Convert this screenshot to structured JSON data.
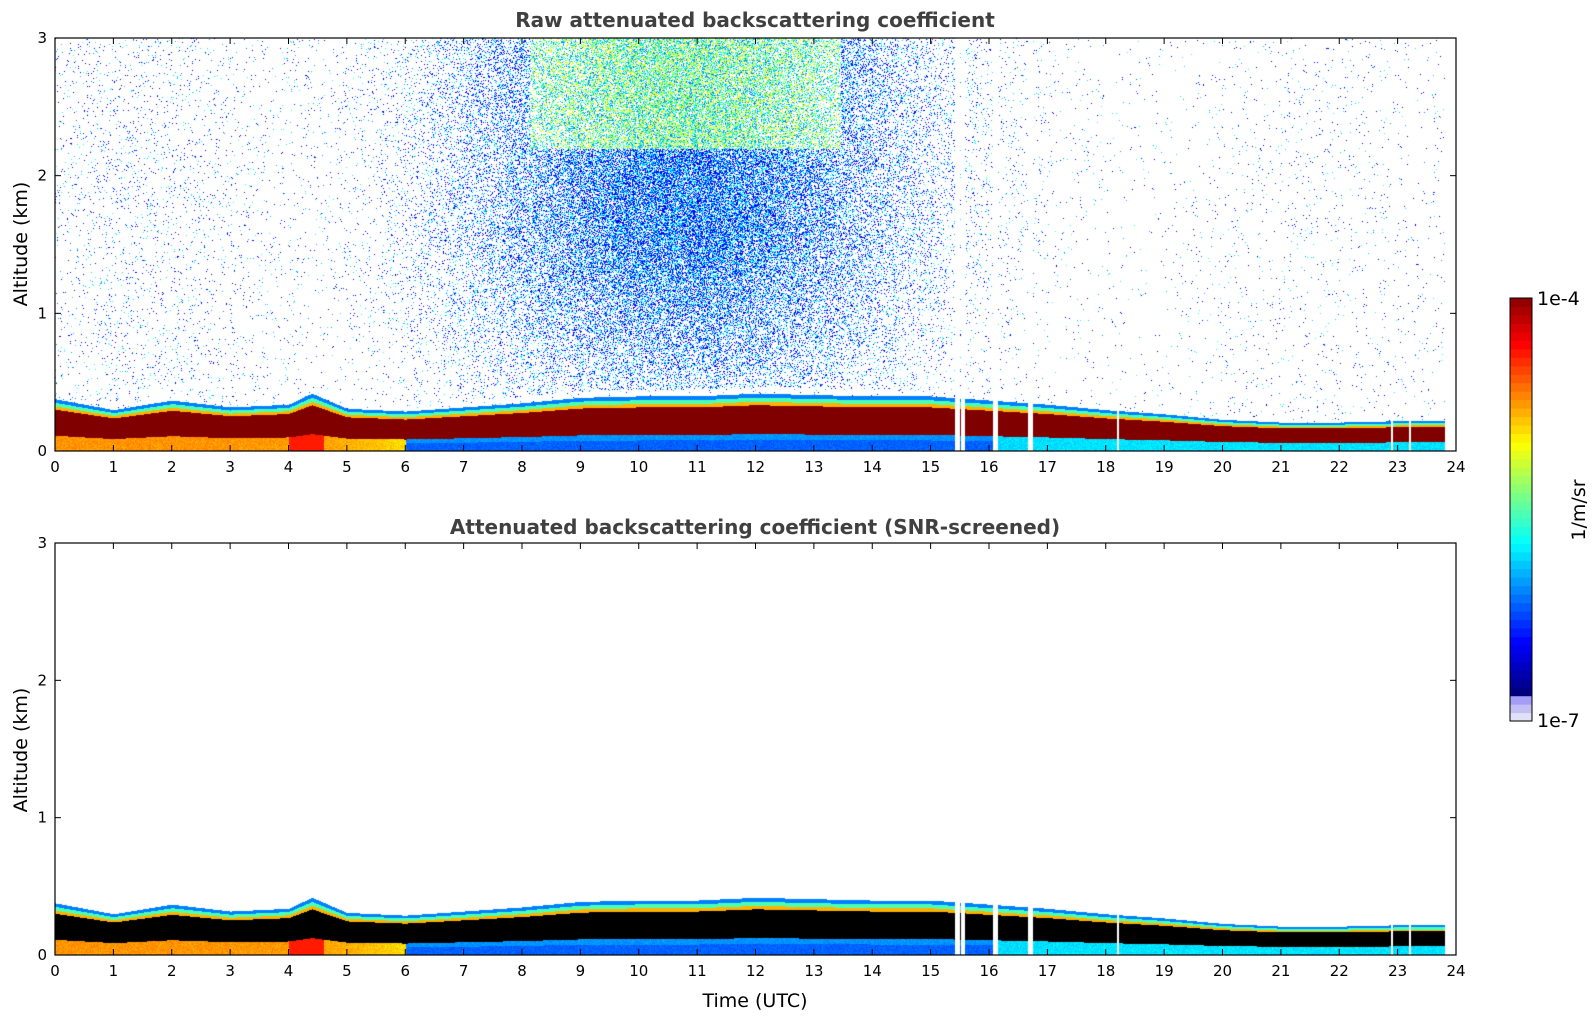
{
  "chart_data": [
    {
      "type": "heatmap",
      "title": "Raw attenuated backscattering coefficient",
      "xlabel": "",
      "ylabel": "Altitude (km)",
      "xlim": [
        0,
        24
      ],
      "ylim": [
        0,
        3
      ],
      "x_ticks": [
        "0",
        "1",
        "2",
        "3",
        "4",
        "5",
        "6",
        "7",
        "8",
        "9",
        "10",
        "11",
        "12",
        "13",
        "14",
        "15",
        "16",
        "17",
        "18",
        "19",
        "20",
        "21",
        "22",
        "23",
        "24"
      ],
      "y_ticks": [
        "0",
        "1",
        "2",
        "3"
      ],
      "screened": false,
      "layer_top_km": [
        {
          "t": 0,
          "z": 0.38
        },
        {
          "t": 1,
          "z": 0.3
        },
        {
          "t": 2,
          "z": 0.37
        },
        {
          "t": 3,
          "z": 0.32
        },
        {
          "t": 4,
          "z": 0.34
        },
        {
          "t": 4.4,
          "z": 0.42
        },
        {
          "t": 5,
          "z": 0.31
        },
        {
          "t": 6,
          "z": 0.29
        },
        {
          "t": 7,
          "z": 0.32
        },
        {
          "t": 8,
          "z": 0.35
        },
        {
          "t": 9,
          "z": 0.39
        },
        {
          "t": 10,
          "z": 0.4
        },
        {
          "t": 11,
          "z": 0.4
        },
        {
          "t": 12,
          "z": 0.42
        },
        {
          "t": 13,
          "z": 0.41
        },
        {
          "t": 14,
          "z": 0.4
        },
        {
          "t": 15,
          "z": 0.4
        },
        {
          "t": 16,
          "z": 0.37
        },
        {
          "t": 17,
          "z": 0.34
        },
        {
          "t": 18,
          "z": 0.3
        },
        {
          "t": 19,
          "z": 0.27
        },
        {
          "t": 20,
          "z": 0.23
        },
        {
          "t": 21,
          "z": 0.21
        },
        {
          "t": 22,
          "z": 0.21
        },
        {
          "t": 23,
          "z": 0.22
        },
        {
          "t": 23.8,
          "z": 0.22
        }
      ],
      "noise_center_time": 10.8,
      "data_end_time": 23.8
    },
    {
      "type": "heatmap",
      "title": "Attenuated backscattering coefficient (SNR-screened)",
      "xlabel": "Time (UTC)",
      "ylabel": "Altitude (km)",
      "xlim": [
        0,
        24
      ],
      "ylim": [
        0,
        3
      ],
      "x_ticks": [
        "0",
        "1",
        "2",
        "3",
        "4",
        "5",
        "6",
        "7",
        "8",
        "9",
        "10",
        "11",
        "12",
        "13",
        "14",
        "15",
        "16",
        "17",
        "18",
        "19",
        "20",
        "21",
        "22",
        "23",
        "24"
      ],
      "y_ticks": [
        "0",
        "1",
        "2",
        "3"
      ],
      "screened": true,
      "data_end_time": 23.8
    }
  ],
  "colorbar": {
    "label": "1/m/sr",
    "max_label": "1e-4",
    "min_label": "1e-7",
    "scale": "log",
    "range": [
      1e-07,
      0.0001
    ],
    "colormap": "jet"
  }
}
